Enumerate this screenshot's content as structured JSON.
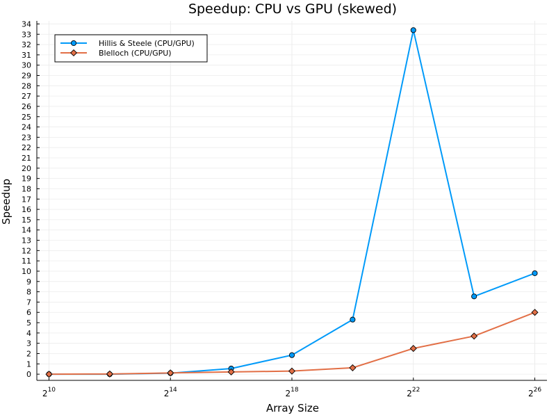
{
  "chart_data": {
    "type": "line",
    "title": "Speedup: CPU vs GPU (skewed)",
    "xlabel": "Array Size",
    "ylabel": "Speedup",
    "x_scale": "log2",
    "x": [
      1024,
      4096,
      16384,
      65536,
      262144,
      1048576,
      4194304,
      16777216,
      67108864
    ],
    "x_ticks": [
      {
        "base": "2",
        "exp": "10",
        "value": 1024
      },
      {
        "base": "2",
        "exp": "14",
        "value": 16384
      },
      {
        "base": "2",
        "exp": "18",
        "value": 262144
      },
      {
        "base": "2",
        "exp": "22",
        "value": 4194304
      },
      {
        "base": "2",
        "exp": "26",
        "value": 67108864
      }
    ],
    "ylim": [
      -0.6,
      34.3
    ],
    "y_ticks": [
      0,
      1,
      2,
      3,
      4,
      5,
      6,
      7,
      8,
      9,
      10,
      11,
      12,
      13,
      14,
      15,
      16,
      17,
      18,
      19,
      20,
      21,
      22,
      23,
      24,
      25,
      26,
      27,
      28,
      29,
      30,
      31,
      32,
      33,
      34
    ],
    "grid": true,
    "legend_position": "top-left",
    "series": [
      {
        "name": "Hillis & Steele (CPU/GPU)",
        "color": "#009af9",
        "marker": "circle",
        "values": [
          0.0,
          0.0,
          0.1,
          0.55,
          1.85,
          5.3,
          33.4,
          7.55,
          9.8
        ]
      },
      {
        "name": "Blelloch (CPU/GPU)",
        "color": "#e26f46",
        "marker": "diamond",
        "values": [
          0.0,
          0.02,
          0.12,
          0.22,
          0.3,
          0.62,
          2.5,
          3.7,
          6.0
        ]
      }
    ]
  }
}
